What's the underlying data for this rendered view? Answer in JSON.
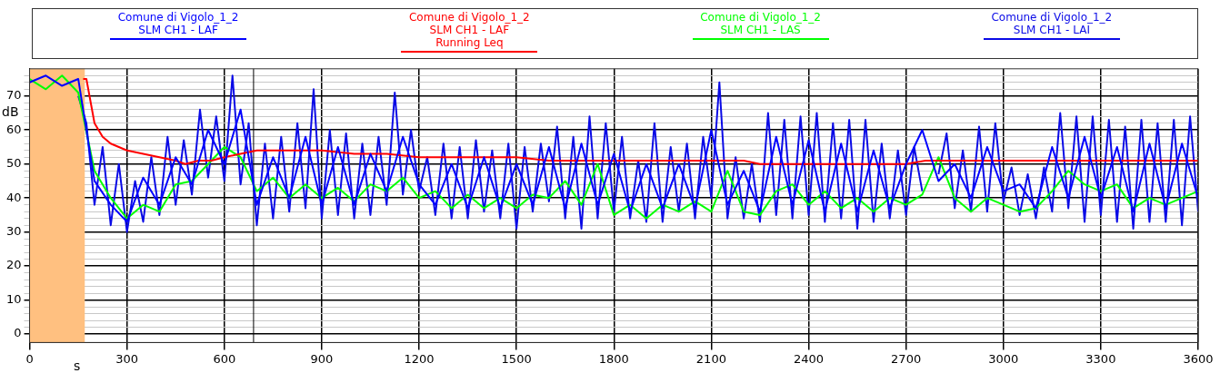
{
  "chart_data": {
    "type": "line",
    "xlabel": "s",
    "ylabel": "dB",
    "xlim": [
      0,
      3600
    ],
    "xticks": [
      0,
      300,
      600,
      900,
      1200,
      1500,
      1800,
      2100,
      2400,
      2700,
      3000,
      3300,
      3600
    ],
    "ylim": [
      -2.5,
      78
    ],
    "yticks": [
      0,
      {
        "value": 2,
        "label": null
      },
      {
        "value": 4,
        "label": null
      },
      {
        "value": 6,
        "label": null
      },
      {
        "value": 8,
        "label": null
      },
      10,
      {
        "value": 12,
        "label": null
      },
      {
        "value": 14,
        "label": null
      },
      {
        "value": 16,
        "label": null
      },
      {
        "value": 18,
        "label": null
      },
      20,
      {
        "value": 22,
        "label": null
      },
      {
        "value": 24,
        "label": null
      },
      {
        "value": 26,
        "label": null
      },
      {
        "value": 28,
        "label": null
      },
      30,
      {
        "value": 32,
        "label": null
      },
      {
        "value": 34,
        "label": null
      },
      {
        "value": 36,
        "label": null
      },
      {
        "value": 38,
        "label": null
      },
      40,
      {
        "value": 42,
        "label": null
      },
      {
        "value": 44,
        "label": null
      },
      {
        "value": 46,
        "label": null
      },
      {
        "value": 48,
        "label": null
      },
      50,
      {
        "value": 52,
        "label": null
      },
      {
        "value": 54,
        "label": null
      },
      {
        "value": 56,
        "label": null
      },
      {
        "value": 58,
        "label": null
      },
      60,
      {
        "value": 62,
        "label": null
      },
      {
        "value": 64,
        "label": null
      },
      {
        "value": 66,
        "label": null
      },
      {
        "value": 68,
        "label": null
      },
      70,
      {
        "value": 72,
        "label": null
      },
      {
        "value": 74,
        "label": null
      },
      {
        "value": 76,
        "label": null
      }
    ],
    "grid": true,
    "legend": "top",
    "bands": [
      {
        "axis": "x",
        "from": 0,
        "to": 170,
        "color": "#ffc080"
      }
    ],
    "ref_lines": [
      {
        "axis": "x",
        "value": 690,
        "color": "#000000"
      }
    ],
    "series": [
      {
        "name": "Comune di Vigolo_1_2\nSLM CH1 - LAF",
        "color": "#0000ff",
        "x": [
          0,
          50,
          100,
          150,
          200,
          250,
          300,
          350,
          400,
          450,
          500,
          550,
          600,
          650,
          700,
          750,
          800,
          850,
          900,
          950,
          1000,
          1050,
          1100,
          1150,
          1200,
          1250,
          1300,
          1350,
          1400,
          1450,
          1500,
          1550,
          1600,
          1650,
          1700,
          1750,
          1800,
          1850,
          1900,
          1950,
          2000,
          2050,
          2100,
          2150,
          2200,
          2250,
          2300,
          2350,
          2400,
          2450,
          2500,
          2550,
          2600,
          2650,
          2700,
          2750,
          2800,
          2850,
          2900,
          2950,
          3000,
          3050,
          3100,
          3150,
          3200,
          3250,
          3300,
          3350,
          3400,
          3450,
          3500,
          3550,
          3600
        ],
        "values": [
          74,
          76,
          73,
          75,
          45,
          38,
          33,
          46,
          38,
          52,
          44,
          60,
          50,
          66,
          38,
          52,
          40,
          58,
          38,
          55,
          38,
          53,
          42,
          58,
          44,
          38,
          50,
          37,
          52,
          37,
          50,
          38,
          55,
          37,
          56,
          38,
          53,
          36,
          50,
          37,
          50,
          37,
          60,
          38,
          48,
          36,
          58,
          38,
          57,
          36,
          56,
          36,
          54,
          37,
          50,
          60,
          45,
          50,
          40,
          55,
          42,
          44,
          37,
          55,
          40,
          58,
          40,
          55,
          36,
          56,
          37,
          56,
          40
        ]
      },
      {
        "name": "Comune di Vigolo_1_2\nSLM CH1 - LAF\nRunning Leq",
        "color": "#ff0000",
        "x": [
          165,
          175,
          200,
          225,
          250,
          300,
          350,
          400,
          450,
          480,
          520,
          560,
          600,
          650,
          700,
          800,
          900,
          1000,
          1100,
          1200,
          1300,
          1400,
          1500,
          1600,
          1700,
          1800,
          1850,
          1900,
          2000,
          2100,
          2200,
          2250,
          2300,
          2400,
          2500,
          2600,
          2700,
          2760,
          2800,
          2900,
          3000,
          3100,
          3200,
          3300,
          3400,
          3500,
          3600
        ],
        "values": [
          75,
          75,
          62,
          58,
          56,
          54,
          53,
          52,
          51,
          50,
          51,
          51,
          52,
          53,
          54,
          54,
          54,
          53,
          53,
          52,
          52,
          52,
          52,
          51,
          51,
          51,
          51,
          51,
          51,
          51,
          51,
          50,
          50,
          50,
          50,
          50,
          50,
          51,
          51,
          51,
          51,
          51,
          51,
          51,
          51,
          51,
          51
        ]
      },
      {
        "name": "Comune di Vigolo_1_2\nSLM CH1 - LAS",
        "color": "#00ff00",
        "x": [
          0,
          50,
          100,
          150,
          200,
          250,
          300,
          350,
          400,
          450,
          500,
          550,
          600,
          650,
          700,
          750,
          800,
          850,
          900,
          950,
          1000,
          1050,
          1100,
          1150,
          1200,
          1250,
          1300,
          1350,
          1400,
          1450,
          1500,
          1550,
          1600,
          1650,
          1700,
          1750,
          1800,
          1850,
          1900,
          1950,
          2000,
          2050,
          2100,
          2150,
          2200,
          2250,
          2300,
          2350,
          2400,
          2450,
          2500,
          2550,
          2600,
          2650,
          2700,
          2750,
          2800,
          2850,
          2900,
          2950,
          3000,
          3050,
          3100,
          3150,
          3200,
          3250,
          3300,
          3350,
          3400,
          3450,
          3500,
          3550,
          3600
        ],
        "values": [
          75,
          72,
          76,
          71,
          48,
          40,
          34,
          38,
          36,
          44,
          45,
          50,
          55,
          52,
          42,
          46,
          40,
          44,
          40,
          43,
          39,
          44,
          42,
          46,
          40,
          42,
          37,
          41,
          37,
          40,
          37,
          41,
          40,
          45,
          38,
          50,
          35,
          38,
          34,
          38,
          36,
          39,
          36,
          48,
          36,
          35,
          42,
          44,
          38,
          42,
          37,
          40,
          36,
          40,
          38,
          41,
          52,
          40,
          36,
          40,
          38,
          36,
          37,
          42,
          48,
          44,
          42,
          44,
          37,
          40,
          38,
          40,
          42
        ]
      },
      {
        "name": "Comune di Vigolo_1_2\nSLM CH1 - LAI",
        "color": "#0a0ae6",
        "x": [
          150,
          175,
          200,
          225,
          250,
          275,
          300,
          325,
          350,
          375,
          400,
          425,
          450,
          475,
          500,
          525,
          550,
          575,
          600,
          625,
          650,
          675,
          700,
          725,
          750,
          775,
          800,
          825,
          850,
          875,
          900,
          925,
          950,
          975,
          1000,
          1025,
          1050,
          1075,
          1100,
          1125,
          1150,
          1175,
          1200,
          1225,
          1250,
          1275,
          1300,
          1325,
          1350,
          1375,
          1400,
          1425,
          1450,
          1475,
          1500,
          1525,
          1550,
          1575,
          1600,
          1625,
          1650,
          1675,
          1700,
          1725,
          1750,
          1775,
          1800,
          1825,
          1850,
          1875,
          1900,
          1925,
          1950,
          1975,
          2000,
          2025,
          2050,
          2075,
          2100,
          2125,
          2150,
          2175,
          2200,
          2225,
          2250,
          2275,
          2300,
          2325,
          2350,
          2375,
          2400,
          2425,
          2450,
          2475,
          2500,
          2525,
          2550,
          2575,
          2600,
          2625,
          2650,
          2675,
          2700,
          2725,
          2750,
          2775,
          2800,
          2825,
          2850,
          2875,
          2900,
          2925,
          2950,
          2975,
          3000,
          3025,
          3050,
          3075,
          3100,
          3125,
          3150,
          3175,
          3200,
          3225,
          3250,
          3275,
          3300,
          3325,
          3350,
          3375,
          3400,
          3425,
          3450,
          3475,
          3500,
          3525,
          3550,
          3575,
          3600
        ],
        "values": [
          70,
          62,
          38,
          55,
          32,
          50,
          30,
          45,
          33,
          52,
          35,
          58,
          38,
          57,
          41,
          66,
          46,
          64,
          45,
          76,
          44,
          62,
          32,
          56,
          34,
          58,
          36,
          62,
          37,
          72,
          34,
          60,
          35,
          59,
          34,
          56,
          35,
          58,
          38,
          71,
          41,
          60,
          42,
          52,
          35,
          56,
          34,
          55,
          34,
          57,
          36,
          54,
          34,
          56,
          31,
          55,
          36,
          56,
          39,
          61,
          34,
          58,
          31,
          64,
          34,
          62,
          36,
          58,
          34,
          51,
          33,
          62,
          33,
          55,
          36,
          56,
          34,
          58,
          40,
          74,
          34,
          52,
          34,
          50,
          33,
          65,
          35,
          63,
          34,
          64,
          35,
          65,
          33,
          62,
          34,
          63,
          31,
          63,
          33,
          56,
          34,
          54,
          35,
          55,
          42,
          null,
          47,
          59,
          37,
          54,
          36,
          61,
          36,
          62,
          39,
          49,
          35,
          47,
          34,
          49,
          36,
          65,
          37,
          64,
          33,
          64,
          35,
          63,
          33,
          61,
          31,
          63,
          33,
          62,
          33,
          63,
          32,
          64,
          36
        ]
      }
    ]
  }
}
